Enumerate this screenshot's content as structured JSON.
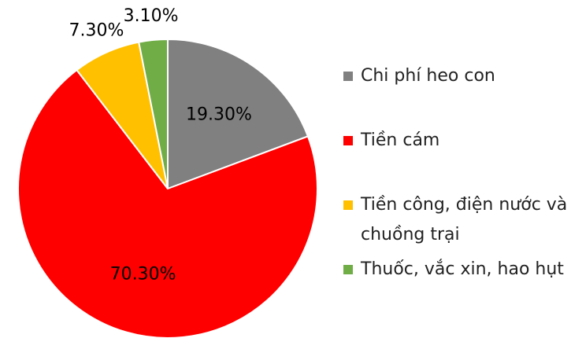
{
  "chart_data": {
    "type": "pie",
    "categories": [
      "Chi phí heo con",
      "Tiền cám",
      "Tiền công, điện nước và chuồng trại",
      "Thuốc, vắc xin, hao hụt"
    ],
    "values": [
      19.3,
      70.3,
      7.3,
      3.1
    ],
    "value_labels": [
      "19.30%",
      "70.30%",
      "7.30%",
      "3.10%"
    ],
    "colors": [
      "#808080",
      "#ff0000",
      "#ffc000",
      "#70ad47"
    ],
    "legend": "right"
  }
}
